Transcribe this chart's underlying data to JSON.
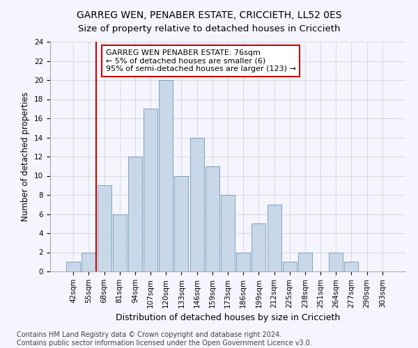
{
  "title": "GARREG WEN, PENABER ESTATE, CRICCIETH, LL52 0ES",
  "subtitle": "Size of property relative to detached houses in Criccieth",
  "xlabel": "Distribution of detached houses by size in Criccieth",
  "ylabel": "Number of detached properties",
  "footer_line1": "Contains HM Land Registry data © Crown copyright and database right 2024.",
  "footer_line2": "Contains public sector information licensed under the Open Government Licence v3.0.",
  "bar_labels": [
    "42sqm",
    "55sqm",
    "68sqm",
    "81sqm",
    "94sqm",
    "107sqm",
    "120sqm",
    "133sqm",
    "146sqm",
    "159sqm",
    "173sqm",
    "186sqm",
    "199sqm",
    "212sqm",
    "225sqm",
    "238sqm",
    "251sqm",
    "264sqm",
    "277sqm",
    "290sqm",
    "303sqm"
  ],
  "bar_values": [
    1,
    2,
    9,
    6,
    12,
    17,
    20,
    10,
    14,
    11,
    8,
    2,
    5,
    7,
    1,
    2,
    0,
    2,
    1,
    0,
    0
  ],
  "bar_color": "#c8d8e8",
  "bar_edge_color": "#5588aa",
  "annotation_text": "GARREG WEN PENABER ESTATE: 76sqm\n← 5% of detached houses are smaller (6)\n95% of semi-detached houses are larger (123) →",
  "annotation_box_color": "#ffffff",
  "annotation_box_edge_color": "#cc0000",
  "vline_color": "#cc0000",
  "vline_x_index": 2,
  "ylim": [
    0,
    24
  ],
  "yticks": [
    0,
    2,
    4,
    6,
    8,
    10,
    12,
    14,
    16,
    18,
    20,
    22,
    24
  ],
  "grid_color": "#cccccc",
  "bg_color": "#f5f5ff",
  "title_fontsize": 10,
  "xlabel_fontsize": 9,
  "ylabel_fontsize": 8.5,
  "tick_fontsize": 7.5,
  "annotation_fontsize": 8,
  "footer_fontsize": 7
}
